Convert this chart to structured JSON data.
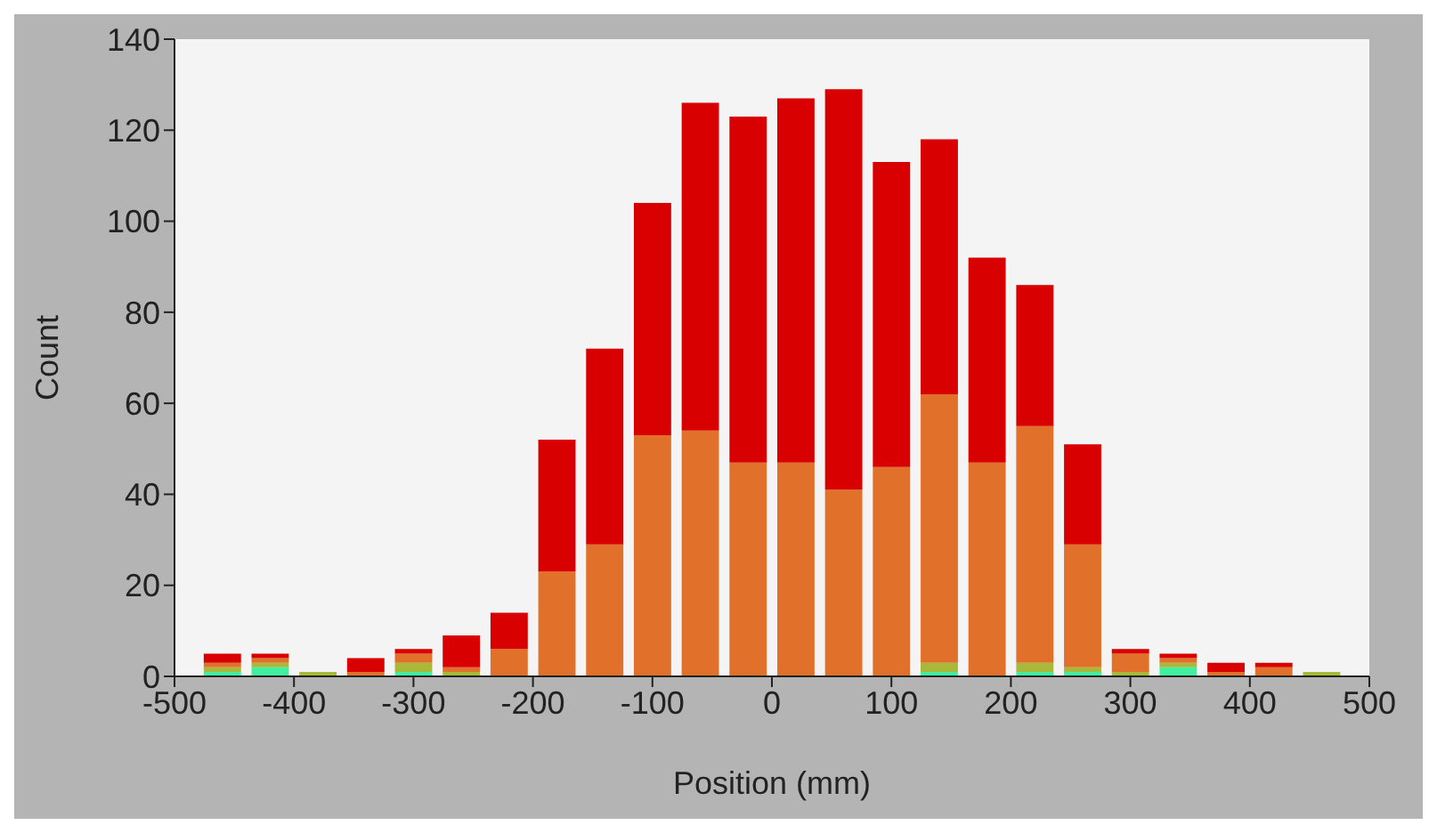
{
  "chart_data": {
    "type": "bar",
    "xlabel": "Position (mm)",
    "ylabel": "Count",
    "x": [
      -460,
      -420,
      -380,
      -340,
      -300,
      -260,
      -220,
      -180,
      -140,
      -100,
      -60,
      -20,
      20,
      60,
      100,
      140,
      180,
      220,
      260,
      300,
      340,
      380,
      420,
      460
    ],
    "stacked": true,
    "series": [
      {
        "color": "#40f0a0",
        "values": [
          1,
          2,
          0,
          0,
          1,
          0,
          0,
          0,
          0,
          0,
          0,
          0,
          0,
          0,
          0,
          1,
          0,
          1,
          1,
          0,
          2,
          0,
          0,
          0
        ]
      },
      {
        "color": "#a8b838",
        "values": [
          1,
          1,
          1,
          0,
          2,
          1,
          0,
          0,
          0,
          0,
          0,
          0,
          0,
          0,
          0,
          2,
          0,
          2,
          1,
          1,
          1,
          0,
          0,
          1
        ]
      },
      {
        "color": "#e0702a",
        "values": [
          1,
          1,
          0,
          1,
          2,
          1,
          6,
          23,
          29,
          53,
          54,
          47,
          47,
          41,
          46,
          59,
          47,
          52,
          27,
          4,
          1,
          1,
          2,
          0
        ]
      },
      {
        "color": "#d80000",
        "values": [
          2,
          1,
          0,
          3,
          1,
          7,
          8,
          29,
          43,
          51,
          72,
          76,
          80,
          88,
          67,
          56,
          45,
          31,
          22,
          1,
          1,
          2,
          1,
          0
        ]
      }
    ],
    "xlim": [
      -500,
      500
    ],
    "xticks": [
      -500,
      -400,
      -300,
      -200,
      -100,
      0,
      100,
      200,
      300,
      400,
      500
    ],
    "ylim": [
      0,
      140
    ],
    "yticks": [
      0,
      20,
      40,
      60,
      80,
      100,
      120,
      140
    ],
    "grid": false,
    "legend": false
  }
}
